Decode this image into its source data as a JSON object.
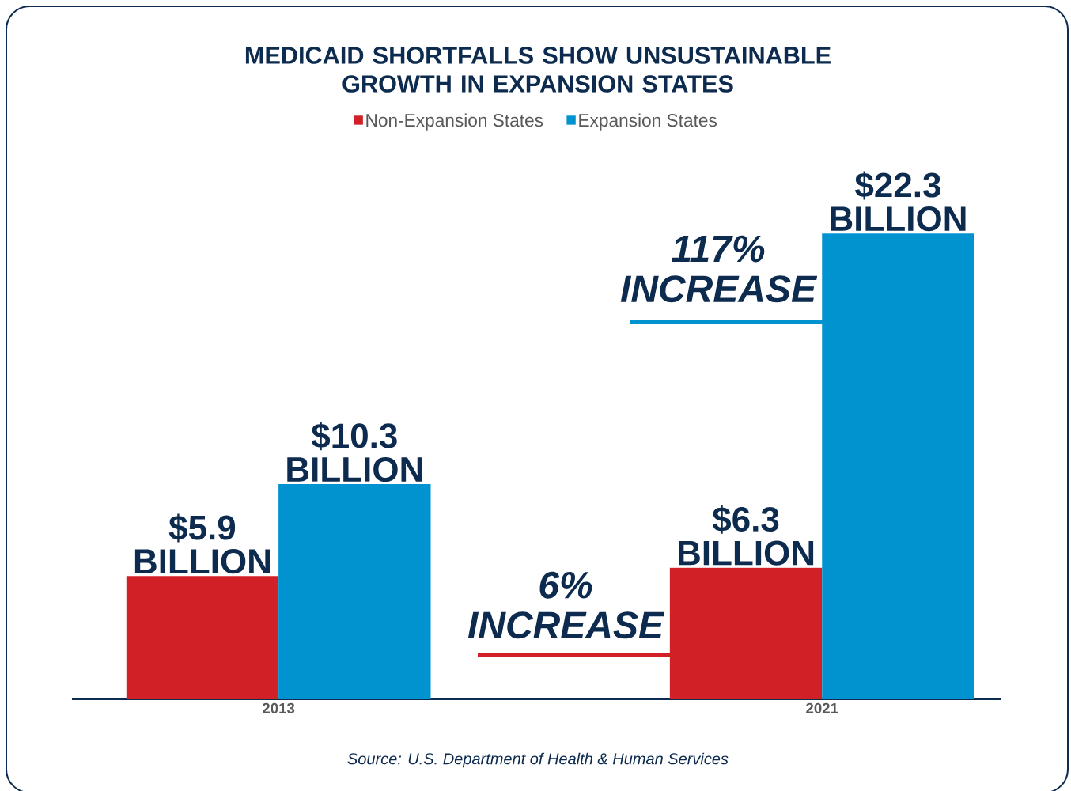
{
  "chart_data": {
    "type": "bar",
    "title": "MEDICAID SHORTFALLS SHOW UNSUSTAINABLE GROWTH IN EXPANSION STATES",
    "categories": [
      "2013",
      "2021"
    ],
    "series": [
      {
        "name": "Non-Expansion States",
        "color": "#d12026",
        "values": [
          5.9,
          6.3
        ],
        "value_labels": [
          "$5.9 BILLION",
          "$6.3 BILLION"
        ]
      },
      {
        "name": "Expansion States",
        "color": "#0093d0",
        "values": [
          10.3,
          22.3
        ],
        "value_labels": [
          "$10.3 BILLION",
          "$22.3 BILLION"
        ]
      }
    ],
    "annotations": [
      "117% INCREASE",
      "6% INCREASE",
      "Source: U.S. Department of Health & Human Services"
    ],
    "legend": "top"
  }
}
